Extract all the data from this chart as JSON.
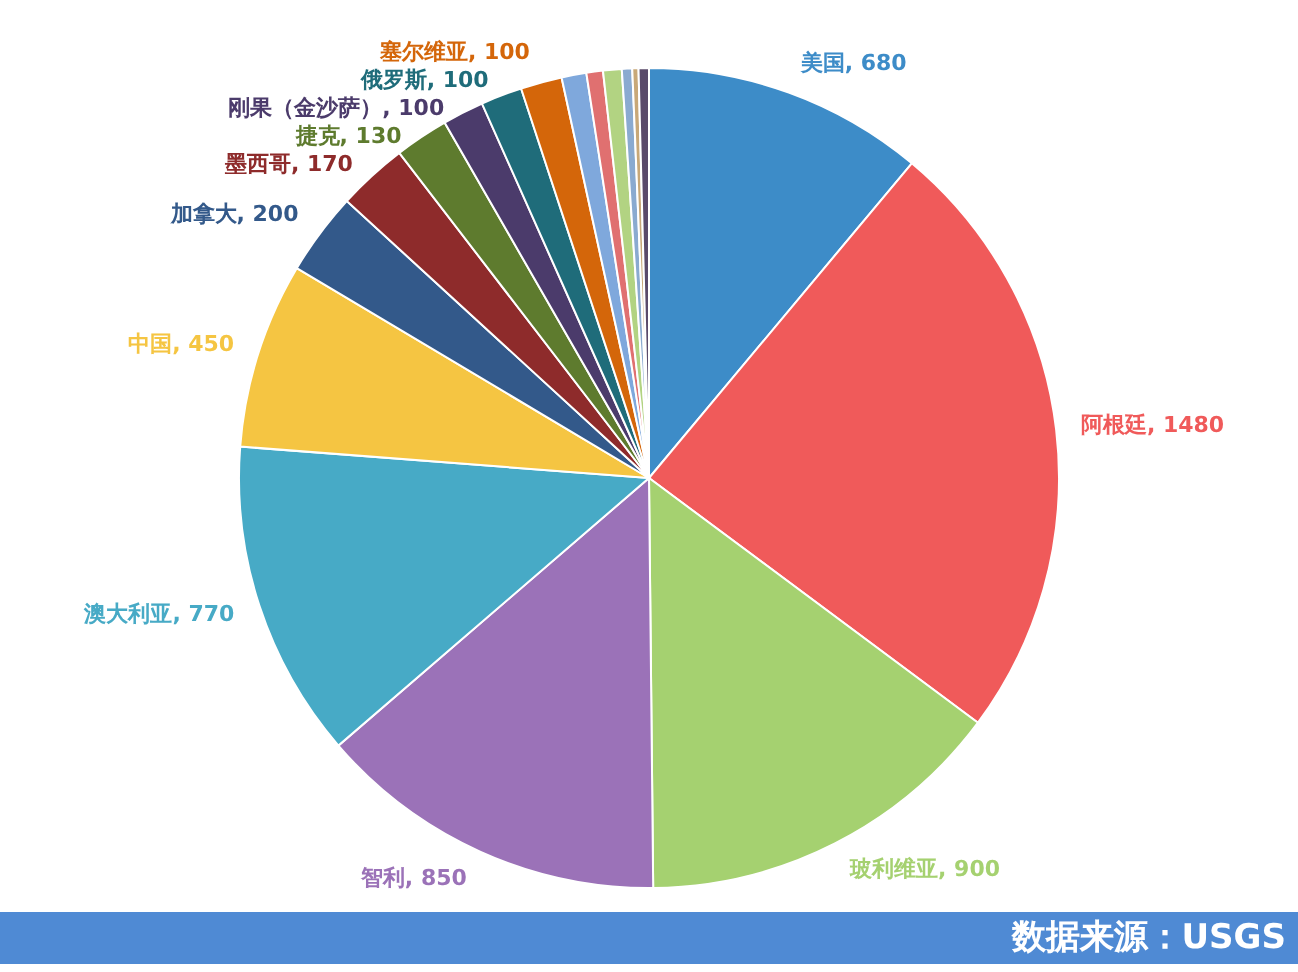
{
  "chart_data": {
    "type": "pie",
    "categories": [
      "美国",
      "阿根廷",
      "玻利维亚",
      "智利",
      "澳大利亚",
      "中国",
      "加拿大",
      "墨西哥",
      "捷克",
      "刚果（金沙萨）",
      "俄罗斯",
      "塞尔维亚",
      null,
      null,
      null,
      null,
      null,
      null
    ],
    "values": [
      680,
      1480,
      900,
      850,
      770,
      450,
      200,
      170,
      130,
      100,
      100,
      100,
      60,
      40,
      45,
      25,
      15,
      25
    ],
    "value_labels": [
      ", 680",
      ", 1480",
      ", 900",
      ", 850",
      ", 770",
      ", 450",
      ", 200",
      ", 170",
      ", 130",
      ", 100",
      ", 100",
      ", 100",
      null,
      null,
      null,
      null,
      null,
      null
    ],
    "colors": [
      "#3d8cc8",
      "#f05a5a",
      "#a5d170",
      "#9b72b8",
      "#47aac6",
      "#f5c542",
      "#33598a",
      "#8e2b2b",
      "#5e7b2e",
      "#4b3b6b",
      "#1f6c7a",
      "#d4660a",
      "#7fa8dc",
      "#e07070",
      "#b2d382",
      "#8aaad0",
      "#c8a878",
      "#5a4a6a"
    ],
    "annotations": [
      "数据来源：USGS"
    ]
  }
}
